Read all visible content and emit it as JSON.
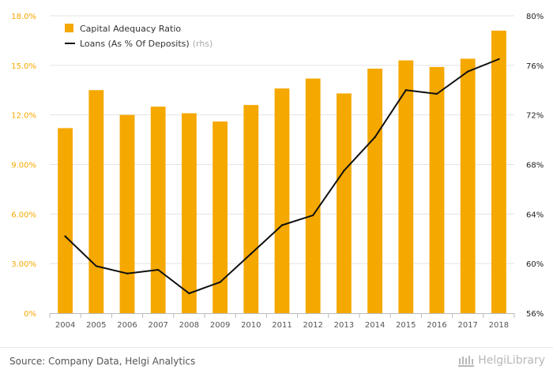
{
  "chart_data": {
    "type": "bar",
    "categories": [
      "2004",
      "2005",
      "2006",
      "2007",
      "2008",
      "2009",
      "2010",
      "2011",
      "2012",
      "2013",
      "2014",
      "2015",
      "2016",
      "2017",
      "2018"
    ],
    "series": [
      {
        "name": "Capital Adequacy Ratio",
        "type": "bar",
        "axis": "left",
        "values": [
          11.2,
          13.5,
          12.0,
          12.5,
          12.1,
          11.6,
          12.6,
          13.6,
          14.2,
          13.3,
          14.8,
          15.3,
          14.9,
          15.4,
          17.1
        ]
      },
      {
        "name": "Loans (As % Of Deposits)",
        "name_suffix": "(rhs)",
        "type": "line",
        "axis": "right",
        "values": [
          62.2,
          59.8,
          59.2,
          59.5,
          57.6,
          58.5,
          60.8,
          63.1,
          63.9,
          67.5,
          70.2,
          74.0,
          73.7,
          75.5,
          76.5
        ]
      }
    ],
    "y_left": {
      "ticks": [
        "0%",
        "3.00%",
        "6.00%",
        "9.00%",
        "12.0%",
        "15.0%",
        "18.0%"
      ],
      "ylim": [
        0,
        18
      ]
    },
    "y_right": {
      "ticks": [
        "56%",
        "60%",
        "64%",
        "68%",
        "72%",
        "76%",
        "80%"
      ],
      "ylim": [
        56,
        80
      ]
    },
    "legend_position": "top-left",
    "grid": true,
    "colors": {
      "bar": "#f5a800",
      "line": "#111111",
      "left_ticks": "#f5a800",
      "right_ticks": "#222222"
    }
  },
  "footer": {
    "source": "Source: Company Data, Helgi Analytics",
    "brand": "HelgiLibrary",
    "brand_icon": "library-building-icon"
  }
}
